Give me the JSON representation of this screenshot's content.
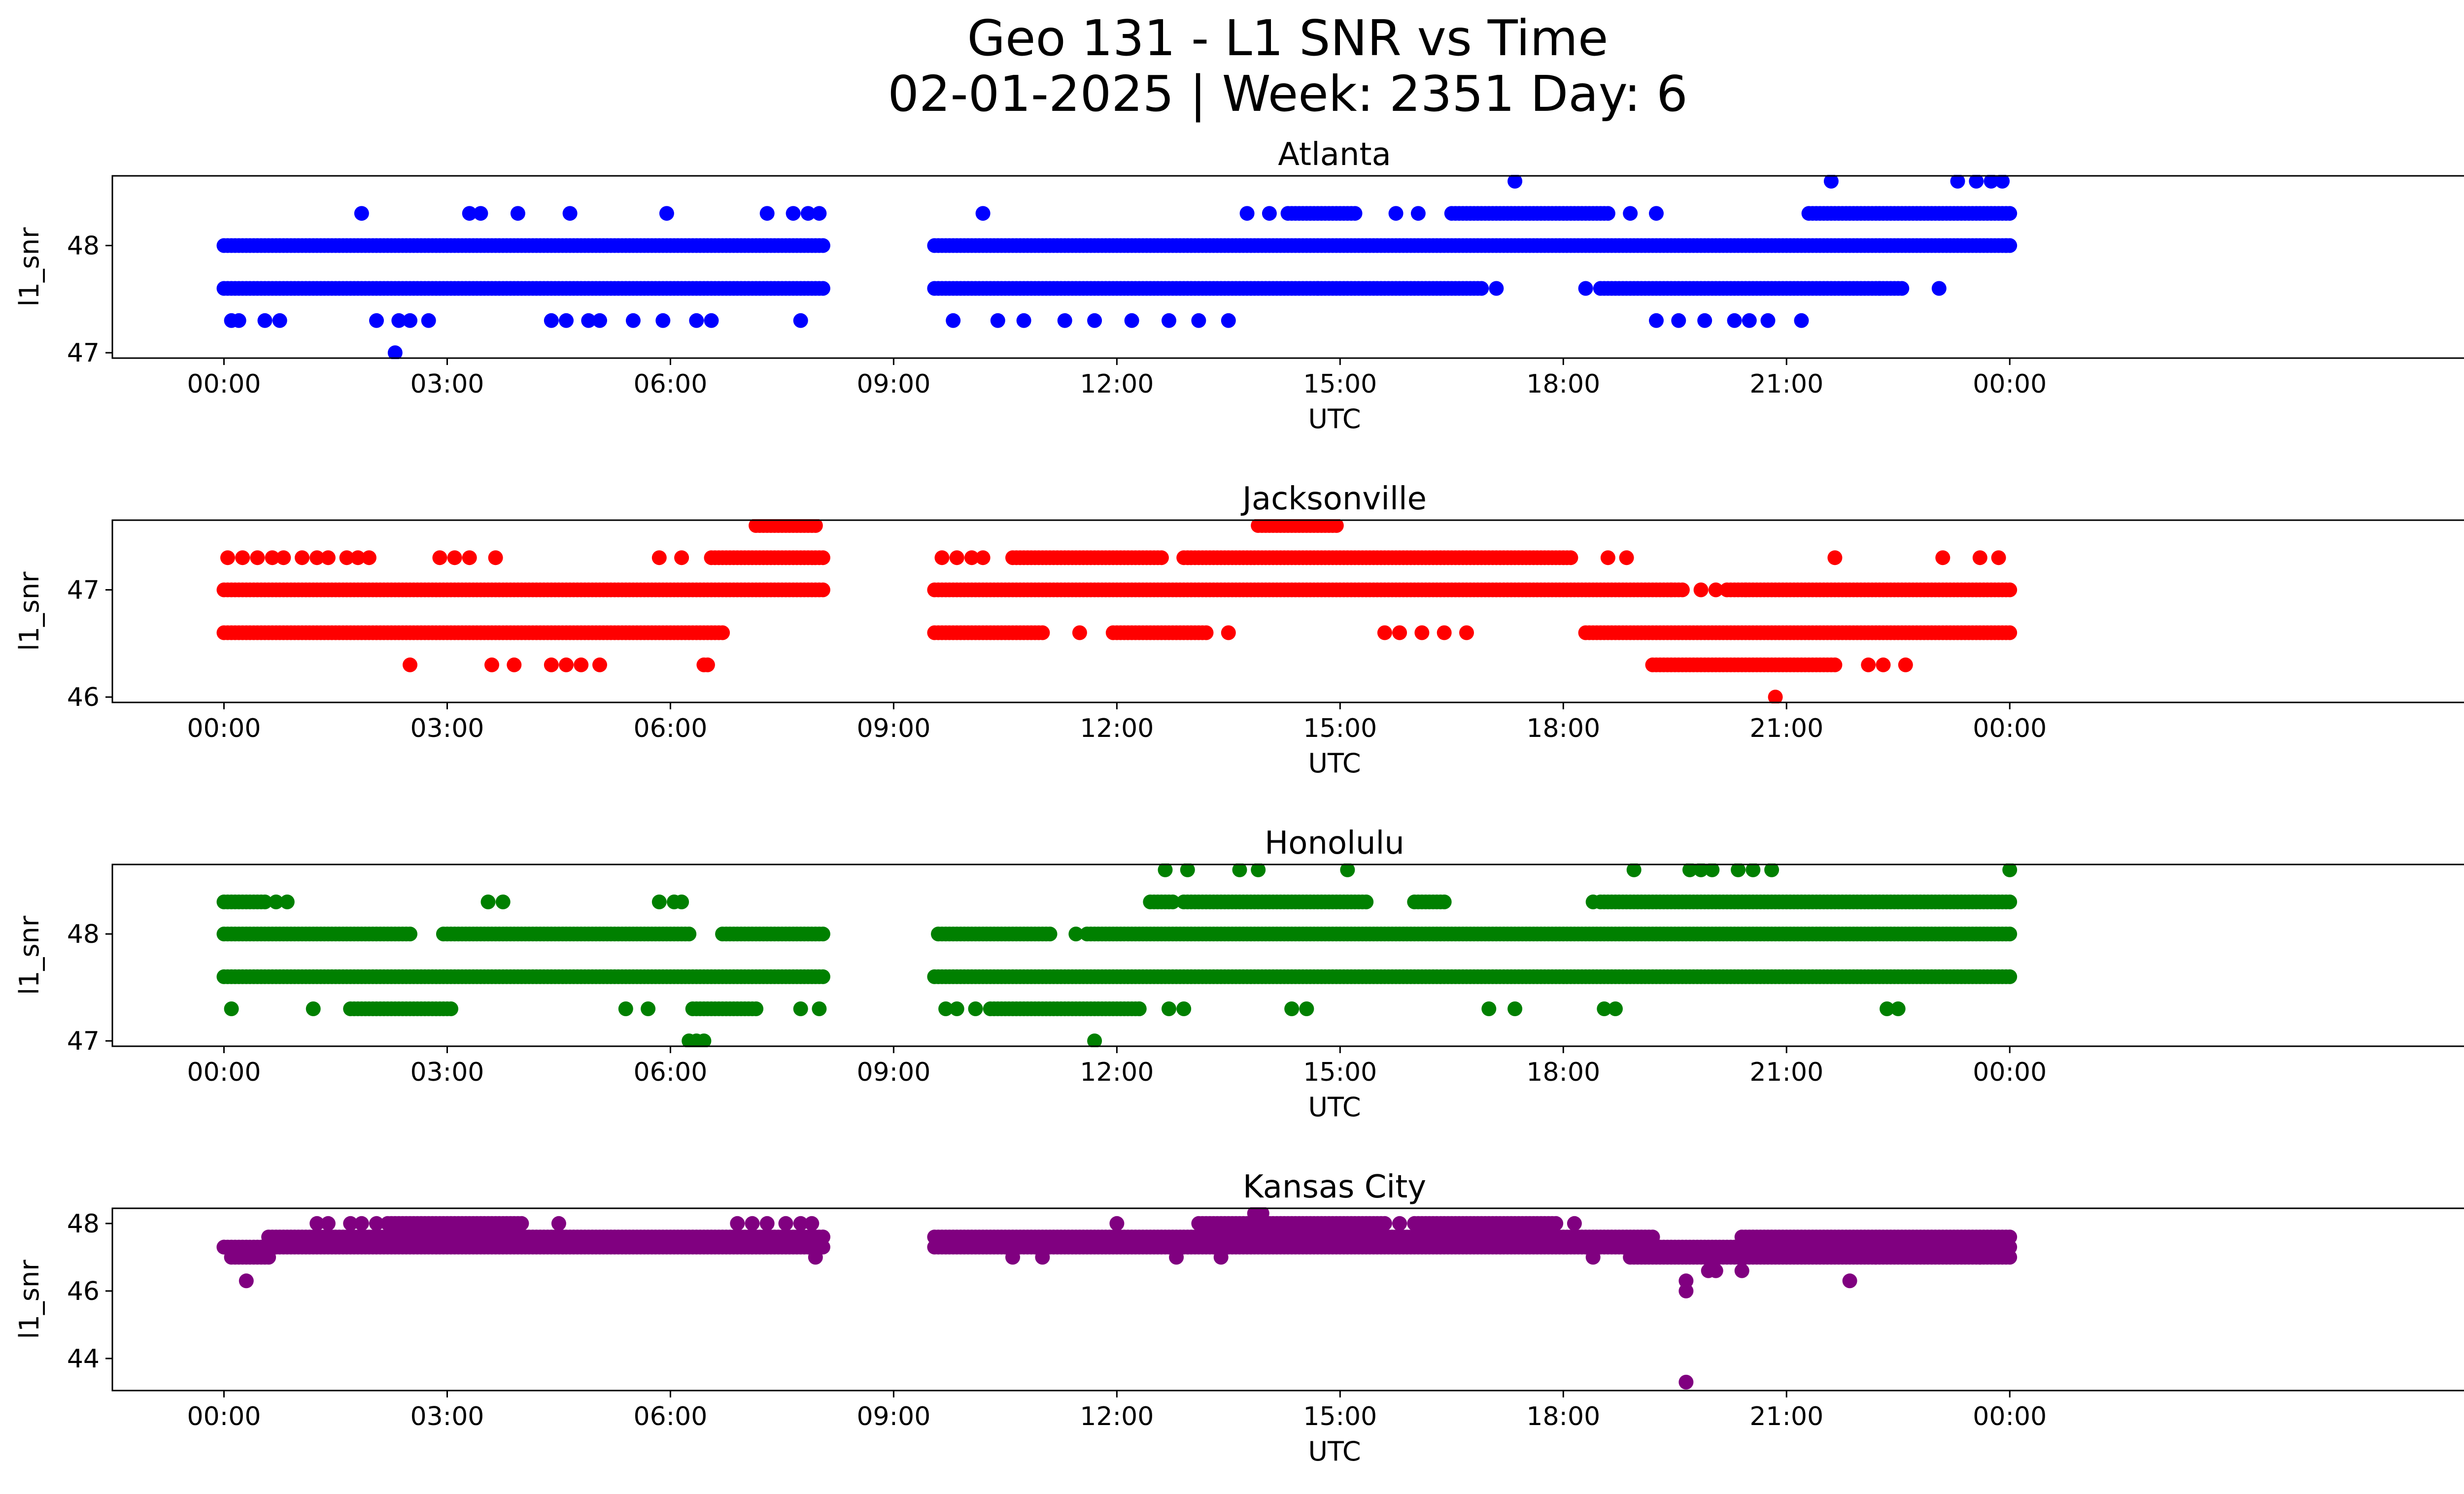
{
  "figure": {
    "title_line1": "Geo 131 - L1 SNR vs Time",
    "title_line2": "02-01-2025 | Week: 2351 Day: 6"
  },
  "chart_data": [
    {
      "type": "scatter",
      "title": "Atlanta",
      "xlabel": "UTC",
      "ylabel": "l1_snr",
      "color": "#0000ff",
      "xlim": [
        -1.5,
        31.35
      ],
      "ylim": [
        46.95,
        48.65
      ],
      "x_ticks": [
        "00:00",
        "03:00",
        "06:00",
        "09:00",
        "12:00",
        "15:00",
        "18:00",
        "21:00",
        "00:00"
      ],
      "y_ticks": [
        47,
        48
      ],
      "segments": [
        {
          "start": 0.0,
          "end": 8.05,
          "level": 48.0,
          "gaps": []
        },
        {
          "start": 0.0,
          "end": 8.05,
          "level": 47.6,
          "gaps": []
        },
        {
          "start": 9.55,
          "end": 24.0,
          "level": 48.0,
          "gaps": []
        },
        {
          "start": 9.55,
          "end": 14.7,
          "level": 47.6,
          "gaps": []
        },
        {
          "start": 14.7,
          "end": 16.9,
          "level": 47.6,
          "gaps": []
        },
        {
          "start": 18.5,
          "end": 22.5,
          "level": 47.6,
          "gaps": []
        },
        {
          "start": 16.5,
          "end": 18.6,
          "level": 48.3,
          "gaps": []
        },
        {
          "start": 21.3,
          "end": 24.0,
          "level": 48.3,
          "gaps": []
        },
        {
          "start": 14.3,
          "end": 15.2,
          "level": 48.3,
          "gaps": []
        }
      ],
      "points": [
        [
          0.1,
          47.3
        ],
        [
          0.2,
          47.3
        ],
        [
          0.55,
          47.3
        ],
        [
          0.75,
          47.3
        ],
        [
          1.85,
          48.3
        ],
        [
          2.05,
          47.3
        ],
        [
          2.3,
          47.0
        ],
        [
          2.35,
          47.3
        ],
        [
          2.5,
          47.3
        ],
        [
          2.75,
          47.3
        ],
        [
          3.3,
          48.3
        ],
        [
          3.45,
          48.3
        ],
        [
          3.95,
          48.3
        ],
        [
          4.4,
          47.3
        ],
        [
          4.6,
          47.3
        ],
        [
          4.65,
          48.3
        ],
        [
          4.9,
          47.3
        ],
        [
          5.05,
          47.3
        ],
        [
          5.5,
          47.3
        ],
        [
          5.9,
          47.3
        ],
        [
          5.95,
          48.3
        ],
        [
          6.35,
          47.3
        ],
        [
          6.55,
          47.3
        ],
        [
          7.3,
          48.3
        ],
        [
          7.65,
          48.3
        ],
        [
          7.85,
          48.3
        ],
        [
          8.0,
          48.3
        ],
        [
          7.75,
          47.3
        ],
        [
          9.8,
          47.3
        ],
        [
          10.2,
          48.3
        ],
        [
          10.4,
          47.3
        ],
        [
          10.75,
          47.3
        ],
        [
          11.3,
          47.3
        ],
        [
          11.7,
          47.3
        ],
        [
          12.2,
          47.3
        ],
        [
          12.7,
          47.3
        ],
        [
          13.1,
          47.3
        ],
        [
          13.5,
          47.3
        ],
        [
          13.75,
          48.3
        ],
        [
          14.05,
          48.3
        ],
        [
          15.75,
          48.3
        ],
        [
          16.05,
          48.3
        ],
        [
          17.1,
          47.6
        ],
        [
          17.35,
          48.6
        ],
        [
          18.3,
          47.6
        ],
        [
          18.9,
          48.3
        ],
        [
          19.25,
          48.3
        ],
        [
          19.25,
          47.3
        ],
        [
          19.55,
          47.3
        ],
        [
          19.9,
          47.3
        ],
        [
          20.3,
          47.3
        ],
        [
          20.5,
          47.3
        ],
        [
          20.75,
          47.3
        ],
        [
          21.2,
          47.3
        ],
        [
          21.6,
          48.6
        ],
        [
          22.25,
          47.6
        ],
        [
          22.55,
          47.6
        ],
        [
          23.05,
          47.6
        ],
        [
          23.3,
          48.6
        ],
        [
          23.55,
          48.6
        ],
        [
          23.75,
          48.6
        ],
        [
          23.9,
          48.6
        ],
        [
          23.95,
          48.0
        ]
      ]
    },
    {
      "type": "scatter",
      "title": "Jacksonville",
      "xlabel": "UTC",
      "ylabel": "l1_snr",
      "color": "#ff0000",
      "xlim": [
        -1.5,
        31.35
      ],
      "ylim": [
        45.95,
        47.65
      ],
      "x_ticks": [
        "00:00",
        "03:00",
        "06:00",
        "09:00",
        "12:00",
        "15:00",
        "18:00",
        "21:00",
        "00:00"
      ],
      "y_ticks": [
        46,
        47
      ],
      "segments": [
        {
          "start": 0.0,
          "end": 8.05,
          "level": 47.0,
          "gaps": []
        },
        {
          "start": 0.0,
          "end": 6.7,
          "level": 46.6,
          "gaps": []
        },
        {
          "start": 6.55,
          "end": 8.05,
          "level": 47.3,
          "gaps": []
        },
        {
          "start": 7.15,
          "end": 7.95,
          "level": 47.6,
          "gaps": []
        },
        {
          "start": 9.55,
          "end": 19.6,
          "level": 47.0,
          "gaps": []
        },
        {
          "start": 20.2,
          "end": 24.0,
          "level": 47.0,
          "gaps": []
        },
        {
          "start": 9.55,
          "end": 11.0,
          "level": 46.6,
          "gaps": []
        },
        {
          "start": 11.95,
          "end": 13.2,
          "level": 46.6,
          "gaps": []
        },
        {
          "start": 18.3,
          "end": 24.0,
          "level": 46.6,
          "gaps": []
        },
        {
          "start": 12.9,
          "end": 18.1,
          "level": 47.3,
          "gaps": []
        },
        {
          "start": 10.6,
          "end": 12.6,
          "level": 47.3,
          "gaps": []
        },
        {
          "start": 13.9,
          "end": 14.95,
          "level": 47.6,
          "gaps": []
        },
        {
          "start": 19.2,
          "end": 21.65,
          "level": 46.3,
          "gaps": []
        }
      ],
      "points": [
        [
          0.05,
          47.3
        ],
        [
          0.25,
          47.3
        ],
        [
          0.45,
          47.3
        ],
        [
          0.65,
          47.3
        ],
        [
          0.8,
          47.3
        ],
        [
          1.05,
          47.3
        ],
        [
          1.25,
          47.3
        ],
        [
          1.4,
          47.3
        ],
        [
          1.65,
          47.3
        ],
        [
          1.8,
          47.3
        ],
        [
          1.95,
          47.3
        ],
        [
          2.5,
          46.3
        ],
        [
          2.9,
          47.3
        ],
        [
          3.1,
          47.3
        ],
        [
          3.3,
          47.3
        ],
        [
          3.6,
          46.3
        ],
        [
          3.65,
          47.3
        ],
        [
          3.9,
          46.3
        ],
        [
          4.4,
          46.3
        ],
        [
          4.6,
          46.3
        ],
        [
          4.8,
          46.3
        ],
        [
          5.05,
          46.3
        ],
        [
          5.85,
          47.3
        ],
        [
          6.15,
          47.3
        ],
        [
          6.45,
          46.3
        ],
        [
          6.5,
          46.3
        ],
        [
          9.65,
          47.3
        ],
        [
          9.85,
          47.3
        ],
        [
          10.05,
          47.3
        ],
        [
          10.2,
          47.3
        ],
        [
          11.5,
          46.6
        ],
        [
          13.5,
          46.6
        ],
        [
          15.6,
          46.6
        ],
        [
          15.8,
          46.6
        ],
        [
          16.1,
          46.6
        ],
        [
          16.4,
          46.6
        ],
        [
          16.7,
          46.6
        ],
        [
          18.6,
          47.3
        ],
        [
          18.85,
          47.3
        ],
        [
          19.45,
          47.0
        ],
        [
          19.85,
          47.0
        ],
        [
          20.05,
          47.0
        ],
        [
          20.45,
          47.0
        ],
        [
          20.85,
          46.0
        ],
        [
          21.65,
          47.3
        ],
        [
          22.1,
          46.3
        ],
        [
          22.3,
          46.3
        ],
        [
          22.6,
          46.3
        ],
        [
          23.1,
          47.3
        ],
        [
          23.6,
          47.3
        ],
        [
          23.85,
          47.3
        ]
      ]
    },
    {
      "type": "scatter",
      "title": "Honolulu",
      "xlabel": "UTC",
      "ylabel": "l1_snr",
      "color": "#008000",
      "xlim": [
        -1.5,
        31.35
      ],
      "ylim": [
        46.95,
        48.65
      ],
      "x_ticks": [
        "00:00",
        "03:00",
        "06:00",
        "09:00",
        "12:00",
        "15:00",
        "18:00",
        "21:00",
        "00:00"
      ],
      "y_ticks": [
        47,
        48
      ],
      "segments": [
        {
          "start": 0.0,
          "end": 2.5,
          "level": 48.0,
          "gaps": []
        },
        {
          "start": 2.95,
          "end": 6.25,
          "level": 48.0,
          "gaps": []
        },
        {
          "start": 6.7,
          "end": 8.05,
          "level": 48.0,
          "gaps": []
        },
        {
          "start": 0.0,
          "end": 8.05,
          "level": 47.6,
          "gaps": []
        },
        {
          "start": 0.0,
          "end": 0.55,
          "level": 48.3,
          "gaps": []
        },
        {
          "start": 1.75,
          "end": 3.05,
          "level": 47.3,
          "gaps": []
        },
        {
          "start": 6.3,
          "end": 7.15,
          "level": 47.3,
          "gaps": []
        },
        {
          "start": 9.6,
          "end": 11.1,
          "level": 48.0,
          "gaps": []
        },
        {
          "start": 11.6,
          "end": 24.0,
          "level": 48.0,
          "gaps": []
        },
        {
          "start": 9.55,
          "end": 24.0,
          "level": 47.6,
          "gaps": []
        },
        {
          "start": 10.3,
          "end": 12.3,
          "level": 47.3,
          "gaps": []
        },
        {
          "start": 12.9,
          "end": 15.35,
          "level": 48.3,
          "gaps": []
        },
        {
          "start": 16.0,
          "end": 16.4,
          "level": 48.3,
          "gaps": []
        },
        {
          "start": 18.5,
          "end": 24.0,
          "level": 48.3,
          "gaps": []
        },
        {
          "start": 12.45,
          "end": 12.75,
          "level": 48.3,
          "gaps": []
        }
      ],
      "points": [
        [
          0.7,
          48.3
        ],
        [
          0.85,
          48.3
        ],
        [
          0.1,
          47.3
        ],
        [
          1.2,
          47.3
        ],
        [
          1.7,
          47.3
        ],
        [
          3.55,
          48.3
        ],
        [
          3.75,
          48.3
        ],
        [
          5.4,
          47.3
        ],
        [
          5.7,
          47.3
        ],
        [
          5.85,
          48.3
        ],
        [
          6.05,
          48.3
        ],
        [
          6.15,
          48.3
        ],
        [
          6.25,
          47.0
        ],
        [
          6.35,
          47.0
        ],
        [
          6.45,
          47.0
        ],
        [
          7.75,
          47.3
        ],
        [
          8.0,
          47.3
        ],
        [
          9.7,
          47.3
        ],
        [
          9.85,
          47.3
        ],
        [
          10.1,
          47.3
        ],
        [
          11.45,
          48.0
        ],
        [
          11.7,
          47.0
        ],
        [
          12.3,
          47.3
        ],
        [
          12.7,
          47.3
        ],
        [
          12.9,
          47.3
        ],
        [
          12.65,
          48.6
        ],
        [
          12.95,
          48.6
        ],
        [
          13.65,
          48.6
        ],
        [
          13.9,
          48.6
        ],
        [
          14.35,
          47.3
        ],
        [
          14.55,
          47.3
        ],
        [
          15.1,
          48.6
        ],
        [
          17.0,
          47.3
        ],
        [
          17.35,
          47.3
        ],
        [
          18.4,
          48.3
        ],
        [
          18.55,
          47.3
        ],
        [
          18.7,
          47.3
        ],
        [
          18.95,
          48.6
        ],
        [
          19.7,
          48.6
        ],
        [
          19.85,
          48.6
        ],
        [
          20.0,
          48.6
        ],
        [
          20.35,
          48.6
        ],
        [
          20.55,
          48.6
        ],
        [
          20.8,
          48.6
        ],
        [
          22.35,
          47.3
        ],
        [
          22.5,
          47.3
        ],
        [
          24.0,
          48.6
        ]
      ]
    },
    {
      "type": "scatter",
      "title": "Kansas City",
      "xlabel": "UTC",
      "ylabel": "l1_snr",
      "color": "#800080",
      "xlim": [
        -1.5,
        31.35
      ],
      "ylim": [
        43.05,
        48.45
      ],
      "x_ticks": [
        "00:00",
        "03:00",
        "06:00",
        "09:00",
        "12:00",
        "15:00",
        "18:00",
        "21:00",
        "00:00"
      ],
      "y_ticks": [
        44,
        46,
        48
      ],
      "segments": [
        {
          "start": 0.0,
          "end": 8.05,
          "level": 47.3,
          "gaps": []
        },
        {
          "start": 0.6,
          "end": 8.05,
          "level": 47.6,
          "gaps": []
        },
        {
          "start": 0.1,
          "end": 0.6,
          "level": 47.0,
          "gaps": []
        },
        {
          "start": 2.2,
          "end": 4.0,
          "level": 48.0,
          "gaps": []
        },
        {
          "start": 9.55,
          "end": 19.2,
          "level": 47.6,
          "gaps": []
        },
        {
          "start": 9.55,
          "end": 19.2,
          "level": 47.3,
          "gaps": []
        },
        {
          "start": 18.9,
          "end": 24.0,
          "level": 47.0,
          "gaps": []
        },
        {
          "start": 19.2,
          "end": 24.0,
          "level": 47.3,
          "gaps": []
        },
        {
          "start": 20.4,
          "end": 24.0,
          "level": 47.6,
          "gaps": []
        },
        {
          "start": 13.1,
          "end": 15.6,
          "level": 48.0,
          "gaps": []
        },
        {
          "start": 16.0,
          "end": 17.9,
          "level": 48.0,
          "gaps": []
        }
      ],
      "points": [
        [
          0.0,
          47.3
        ],
        [
          0.3,
          46.3
        ],
        [
          1.25,
          48.0
        ],
        [
          1.4,
          48.0
        ],
        [
          1.7,
          48.0
        ],
        [
          1.85,
          48.0
        ],
        [
          2.05,
          48.0
        ],
        [
          4.5,
          48.0
        ],
        [
          6.9,
          48.0
        ],
        [
          7.1,
          48.0
        ],
        [
          7.3,
          48.0
        ],
        [
          7.55,
          48.0
        ],
        [
          7.75,
          48.0
        ],
        [
          7.9,
          48.0
        ],
        [
          7.95,
          47.0
        ],
        [
          8.05,
          47.6
        ],
        [
          10.6,
          47.0
        ],
        [
          11.0,
          47.0
        ],
        [
          12.0,
          48.0
        ],
        [
          12.8,
          47.0
        ],
        [
          13.4,
          47.0
        ],
        [
          13.85,
          48.3
        ],
        [
          13.95,
          48.3
        ],
        [
          15.8,
          48.0
        ],
        [
          18.15,
          48.0
        ],
        [
          18.4,
          47.0
        ],
        [
          19.25,
          47.3
        ],
        [
          19.65,
          46.3
        ],
        [
          19.65,
          46.0
        ],
        [
          19.65,
          43.3
        ],
        [
          19.95,
          46.6
        ],
        [
          20.05,
          46.6
        ],
        [
          20.4,
          46.6
        ],
        [
          21.85,
          46.3
        ],
        [
          22.2,
          47.0
        ],
        [
          23.6,
          47.0
        ]
      ]
    }
  ]
}
